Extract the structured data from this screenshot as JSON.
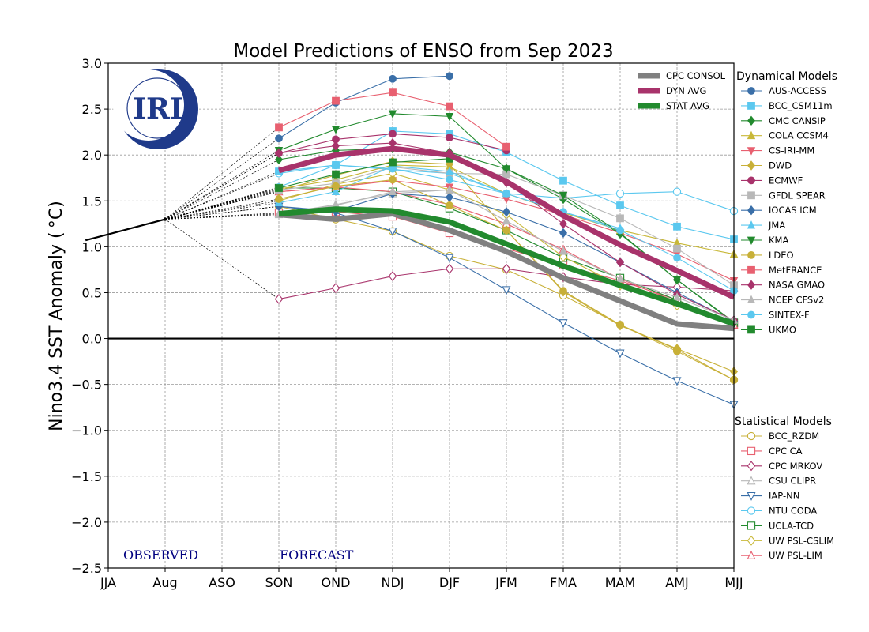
{
  "chart_data": {
    "type": "line",
    "title": "Model Predictions of ENSO from Sep 2023",
    "ylabel": "Nino3.4 SST Anomaly ( °C)",
    "xlabel": "",
    "ylim": [
      -2.5,
      3.0
    ],
    "yticks": [
      -2.5,
      -2.0,
      -1.5,
      -1.0,
      -0.5,
      0.0,
      0.5,
      1.0,
      1.5,
      2.0,
      2.5,
      3.0
    ],
    "yticklabels": [
      "−2.5",
      "−2.0",
      "−1.5",
      "−1.0",
      "−0.5",
      "0.0",
      "0.5",
      "1.0",
      "1.5",
      "2.0",
      "2.5",
      "3.0"
    ],
    "categories": [
      "JJA",
      "Aug",
      "ASO",
      "SON",
      "OND",
      "NDJ",
      "DJF",
      "JFM",
      "FMA",
      "MAM",
      "AMJ",
      "MJJ"
    ],
    "grid": true,
    "observed_label": "OBSERVED",
    "forecast_label": "FORECAST",
    "logo_text": "IRI",
    "observed": {
      "x": [
        -0.4,
        1
      ],
      "values": [
        1.07,
        1.3
      ]
    },
    "averages": [
      {
        "name": "CPC CONSOL",
        "color": "#808080",
        "start": 3,
        "values": [
          1.35,
          1.3,
          1.36,
          1.18,
          0.95,
          0.66,
          0.41,
          0.16,
          0.11
        ]
      },
      {
        "name": "DYN AVG",
        "color": "#a8336b",
        "start": 3,
        "values": [
          1.83,
          2.0,
          2.07,
          2.0,
          1.71,
          1.34,
          1.02,
          0.74,
          0.45
        ]
      },
      {
        "name": "STAT AVG",
        "color": "#228a2e",
        "start": 3,
        "values": [
          1.36,
          1.41,
          1.39,
          1.27,
          1.03,
          0.79,
          0.58,
          0.38,
          0.16
        ]
      }
    ],
    "dynamical_title": "Dynamical Models",
    "statistical_title": "Statistical Models",
    "dynamical": [
      {
        "name": "AUS-ACCESS",
        "color": "#3a6fa8",
        "marker": "circle",
        "start": 3,
        "values": [
          2.18,
          2.57,
          2.83,
          2.86
        ]
      },
      {
        "name": "BCC_CSM11m",
        "color": "#5bc8ef",
        "marker": "square",
        "start": 3,
        "values": [
          1.82,
          1.89,
          2.26,
          2.23,
          2.03,
          1.72,
          1.45,
          1.22,
          1.08
        ]
      },
      {
        "name": "CMC CANSIP",
        "color": "#228a2e",
        "marker": "diamond",
        "start": 3,
        "values": [
          1.95,
          2.05,
          2.07,
          2.03,
          1.85,
          1.52,
          1.14,
          0.64,
          0.17
        ]
      },
      {
        "name": "COLA CCSM4",
        "color": "#c8b838",
        "marker": "triangle-up",
        "start": 3,
        "values": [
          1.63,
          1.73,
          1.89,
          1.87,
          1.58,
          1.37,
          1.18,
          1.04,
          0.92
        ]
      },
      {
        "name": "CS-IRI-MM",
        "color": "#e86070",
        "marker": "triangle-down",
        "start": 3,
        "values": [
          1.6,
          1.65,
          1.72,
          1.65,
          1.52,
          1.35,
          1.15,
          0.92,
          0.63
        ]
      },
      {
        "name": "DWD",
        "color": "#c8b038",
        "marker": "diamond",
        "start": 3,
        "values": [
          1.61,
          1.78,
          1.93,
          1.9,
          1.18,
          0.51,
          0.14,
          -0.11,
          -0.36
        ]
      },
      {
        "name": "ECMWF",
        "color": "#a8336b",
        "marker": "circle",
        "start": 3,
        "values": [
          2.02,
          2.17,
          2.23,
          2.19,
          2.05
        ]
      },
      {
        "name": "GFDL SPEAR",
        "color": "#b8b8b8",
        "marker": "square",
        "start": 3,
        "values": [
          1.62,
          1.69,
          1.87,
          1.8,
          1.79,
          1.56,
          1.31,
          0.98,
          0.58
        ]
      },
      {
        "name": "IOCAS ICM",
        "color": "#3a6fa8",
        "marker": "diamond",
        "start": 3,
        "values": [
          1.44,
          1.39,
          1.58,
          1.54,
          1.38,
          1.15,
          0.83,
          0.5,
          0.19
        ]
      },
      {
        "name": "JMA",
        "color": "#5bc8ef",
        "marker": "triangle-up",
        "start": 3,
        "values": [
          1.48,
          1.6,
          1.88,
          1.82,
          1.58,
          1.38,
          1.2
        ]
      },
      {
        "name": "KMA",
        "color": "#228a2e",
        "marker": "triangle-down",
        "start": 3,
        "values": [
          2.05,
          2.28,
          2.45,
          2.42,
          1.85,
          1.56,
          1.15,
          0.64,
          0.18
        ]
      },
      {
        "name": "LDEO",
        "color": "#c8b038",
        "marker": "circle",
        "start": 3,
        "values": [
          1.52,
          1.66,
          1.73,
          1.45,
          1.18,
          0.52,
          0.15,
          -0.14,
          -0.45
        ]
      },
      {
        "name": "MetFRANCE",
        "color": "#e86070",
        "marker": "square",
        "start": 3,
        "values": [
          2.3,
          2.59,
          2.68,
          2.53,
          2.09
        ]
      },
      {
        "name": "NASA GMAO",
        "color": "#a8336b",
        "marker": "diamond",
        "start": 3,
        "values": [
          2.02,
          2.1,
          2.13,
          2.02,
          1.7,
          1.25,
          0.83,
          0.48,
          0.2
        ]
      },
      {
        "name": "NCEP CFSv2",
        "color": "#b8b8b8",
        "marker": "triangle-up",
        "start": 3,
        "values": [
          1.35,
          1.45,
          1.6,
          1.62,
          1.28,
          0.95,
          0.65,
          0.45,
          0.2
        ]
      },
      {
        "name": "SINTEX-F",
        "color": "#5bc8ef",
        "marker": "circle",
        "start": 3,
        "values": [
          1.65,
          1.89,
          1.85,
          1.73,
          1.58,
          1.38,
          1.18,
          0.88,
          0.52
        ]
      },
      {
        "name": "UKMO",
        "color": "#228a2e",
        "marker": "square",
        "start": 3,
        "values": [
          1.64,
          1.79,
          1.92,
          1.96
        ]
      }
    ],
    "statistical": [
      {
        "name": "BCC_RZDM",
        "color": "#c8b038",
        "marker": "circle",
        "start": 3,
        "values": [
          1.44,
          1.3,
          1.17,
          0.9,
          0.75,
          0.47,
          0.15,
          -0.12,
          -0.45
        ]
      },
      {
        "name": "CPC CA",
        "color": "#e86070",
        "marker": "square",
        "start": 3,
        "values": [
          1.37,
          1.38,
          1.33,
          1.15,
          0.98,
          0.8,
          0.63,
          0.42,
          0.15
        ]
      },
      {
        "name": "CPC MRKOV",
        "color": "#a8336b",
        "marker": "diamond",
        "start": 3,
        "values": [
          0.43,
          0.55,
          0.68,
          0.76,
          0.76,
          0.67,
          0.59,
          0.56,
          0.52
        ]
      },
      {
        "name": "CSU CLIPR",
        "color": "#b8b8b8",
        "marker": "triangle-up",
        "start": 3,
        "values": [
          1.36,
          1.46,
          1.58,
          1.62,
          1.28,
          0.95,
          0.65,
          0.45,
          0.2
        ]
      },
      {
        "name": "IAP-NN",
        "color": "#3a6fa8",
        "marker": "triangle-down",
        "start": 3,
        "values": [
          1.44,
          1.37,
          1.17,
          0.88,
          0.53,
          0.17,
          -0.16,
          -0.46,
          -0.72
        ]
      },
      {
        "name": "NTU CODA",
        "color": "#5bc8ef",
        "marker": "circle",
        "start": 3,
        "values": [
          1.8,
          1.89,
          1.84,
          1.8,
          1.58,
          1.53,
          1.58,
          1.6,
          1.39
        ]
      },
      {
        "name": "UCLA-TCD",
        "color": "#228a2e",
        "marker": "square",
        "start": 3,
        "values": [
          1.64,
          1.64,
          1.6,
          1.42,
          1.18,
          0.88,
          0.66,
          0.42,
          0.17
        ]
      },
      {
        "name": "UW PSL-CSLIM",
        "color": "#c8b838",
        "marker": "diamond",
        "start": 3,
        "values": [
          1.5,
          1.68,
          1.8,
          1.62,
          1.35,
          0.89,
          0.58,
          0.36,
          0.18
        ]
      },
      {
        "name": "UW PSL-LIM",
        "color": "#e86070",
        "marker": "triangle-up",
        "start": 3,
        "values": [
          1.6,
          1.65,
          1.6,
          1.46,
          1.25,
          0.97,
          0.65,
          0.4,
          0.15
        ]
      }
    ]
  }
}
